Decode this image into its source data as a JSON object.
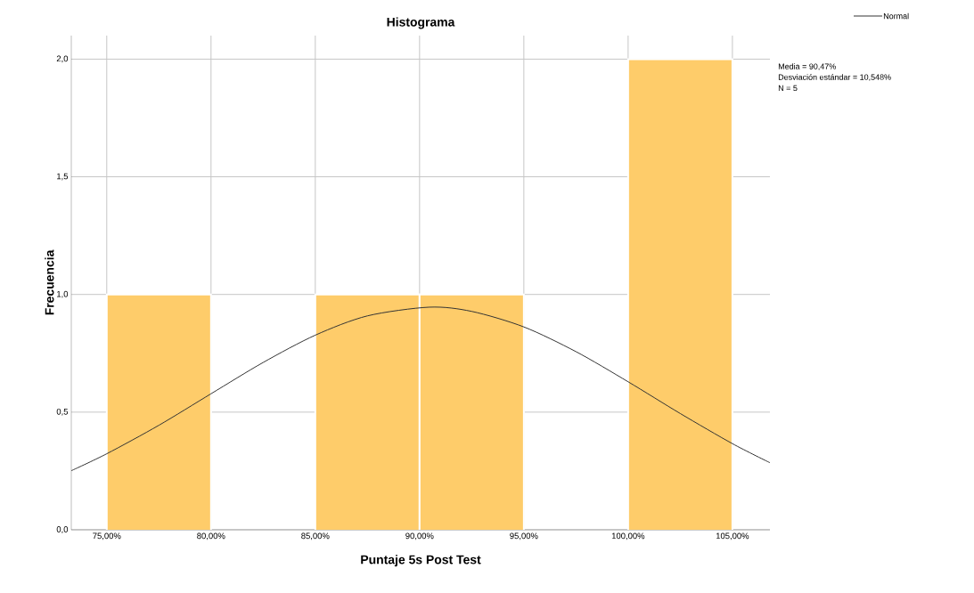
{
  "chart_data": {
    "type": "histogram",
    "title": "Histograma",
    "xlabel": "Puntaje 5s Post Test",
    "ylabel": "Frecuencia",
    "bins": [
      75,
      80,
      85,
      90,
      95,
      100,
      105
    ],
    "values": [
      1,
      0,
      1,
      1,
      0,
      2
    ],
    "color": "#fecc6a",
    "series": [
      {
        "name": "Normal",
        "type": "line",
        "color": "#333333",
        "x": [
          73.3,
          75,
          77.5,
          80,
          82.5,
          85,
          87.5,
          90.47,
          92.5,
          95,
          97.5,
          100,
          102.5,
          105,
          106.8
        ],
        "values": [
          0.251,
          0.323,
          0.444,
          0.578,
          0.711,
          0.827,
          0.909,
          0.946,
          0.928,
          0.862,
          0.757,
          0.629,
          0.494,
          0.366,
          0.285
        ]
      }
    ],
    "xlim": [
      73.3,
      106.8
    ],
    "ylim": [
      0,
      2.1
    ],
    "xticks": [
      {
        "value": 75,
        "label": "75,00%"
      },
      {
        "value": 80,
        "label": "80,00%"
      },
      {
        "value": 85,
        "label": "85,00%"
      },
      {
        "value": 90,
        "label": "90,00%"
      },
      {
        "value": 95,
        "label": "95,00%"
      },
      {
        "value": 100,
        "label": "100,00%"
      },
      {
        "value": 105,
        "label": "105,00%"
      }
    ],
    "yticks": [
      {
        "value": 0,
        "label": "0,0"
      },
      {
        "value": 0.5,
        "label": "0,5"
      },
      {
        "value": 1,
        "label": "1,0"
      },
      {
        "value": 1.5,
        "label": "1,5"
      },
      {
        "value": 2,
        "label": "2,0"
      }
    ],
    "grid": true,
    "legend": "top right",
    "annotations": [
      "Media = 90,47%",
      "Desviación estándar = 10,548%",
      "N = 5"
    ]
  }
}
